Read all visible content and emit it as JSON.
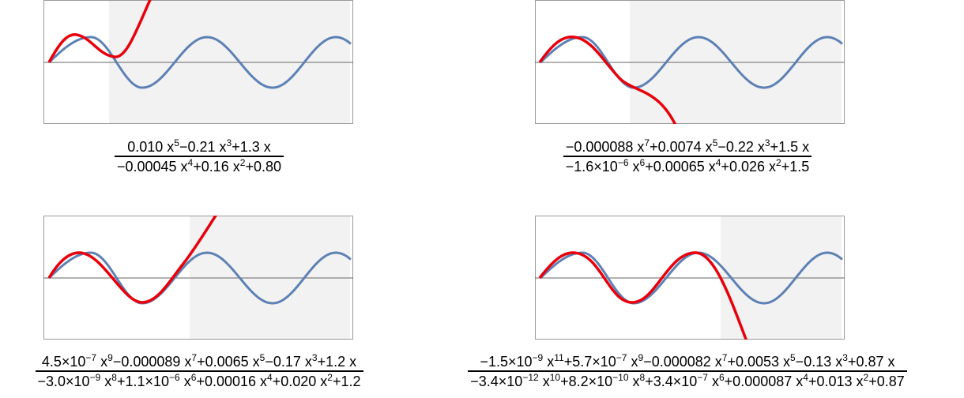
{
  "formulas": [
    {
      "numerator": [
        {
          "text": "0.010 x"
        },
        {
          "sup": "5"
        },
        {
          "text": "−0.21 x"
        },
        {
          "sup": "3"
        },
        {
          "text": "+1.3 x"
        }
      ],
      "denominator": [
        {
          "text": "−0.00045 x"
        },
        {
          "sup": "4"
        },
        {
          "text": "+0.16 x"
        },
        {
          "sup": "2"
        },
        {
          "text": "+0.80"
        }
      ]
    },
    {
      "numerator": [
        {
          "text": "−0.000088 x"
        },
        {
          "sup": "7"
        },
        {
          "text": "+0.0074 x"
        },
        {
          "sup": "5"
        },
        {
          "text": "−0.22 x"
        },
        {
          "sup": "3"
        },
        {
          "text": "+1.5 x"
        }
      ],
      "denominator": [
        {
          "text": "−1.6×10"
        },
        {
          "sup": "−6"
        },
        {
          "text": " x"
        },
        {
          "sup": "6"
        },
        {
          "text": "+0.00065 x"
        },
        {
          "sup": "4"
        },
        {
          "text": "+0.026 x"
        },
        {
          "sup": "2"
        },
        {
          "text": "+1.5"
        }
      ]
    },
    {
      "numerator": [
        {
          "text": "4.5×10"
        },
        {
          "sup": "−7"
        },
        {
          "text": " x"
        },
        {
          "sup": "9"
        },
        {
          "text": "−0.000089 x"
        },
        {
          "sup": "7"
        },
        {
          "text": "+0.0065 x"
        },
        {
          "sup": "5"
        },
        {
          "text": "−0.17 x"
        },
        {
          "sup": "3"
        },
        {
          "text": "+1.2 x"
        }
      ],
      "denominator": [
        {
          "text": "−3.0×10"
        },
        {
          "sup": "−9"
        },
        {
          "text": " x"
        },
        {
          "sup": "8"
        },
        {
          "text": "+1.1×10"
        },
        {
          "sup": "−6"
        },
        {
          "text": " x"
        },
        {
          "sup": "6"
        },
        {
          "text": "+0.00016 x"
        },
        {
          "sup": "4"
        },
        {
          "text": "+0.020 x"
        },
        {
          "sup": "2"
        },
        {
          "text": "+1.2"
        }
      ]
    },
    {
      "numerator": [
        {
          "text": "−1.5×10"
        },
        {
          "sup": "−9"
        },
        {
          "text": " x"
        },
        {
          "sup": "11"
        },
        {
          "text": "+5.7×10"
        },
        {
          "sup": "−7"
        },
        {
          "text": " x"
        },
        {
          "sup": "9"
        },
        {
          "text": "−0.000082 x"
        },
        {
          "sup": "7"
        },
        {
          "text": "+0.0053 x"
        },
        {
          "sup": "5"
        },
        {
          "text": "−0.13 x"
        },
        {
          "sup": "3"
        },
        {
          "text": "+0.87 x"
        }
      ],
      "denominator": [
        {
          "text": "−3.4×10"
        },
        {
          "sup": "−12"
        },
        {
          "text": " x"
        },
        {
          "sup": "10"
        },
        {
          "text": "+8.2×10"
        },
        {
          "sup": "−10"
        },
        {
          "text": " x"
        },
        {
          "sup": "8"
        },
        {
          "text": "+3.4×10"
        },
        {
          "sup": "−7"
        },
        {
          "text": " x"
        },
        {
          "sup": "6"
        },
        {
          "text": "+0.000087 x"
        },
        {
          "sup": "4"
        },
        {
          "text": "+0.013 x"
        },
        {
          "sup": "2"
        },
        {
          "text": "+0.87"
        }
      ]
    }
  ]
}
